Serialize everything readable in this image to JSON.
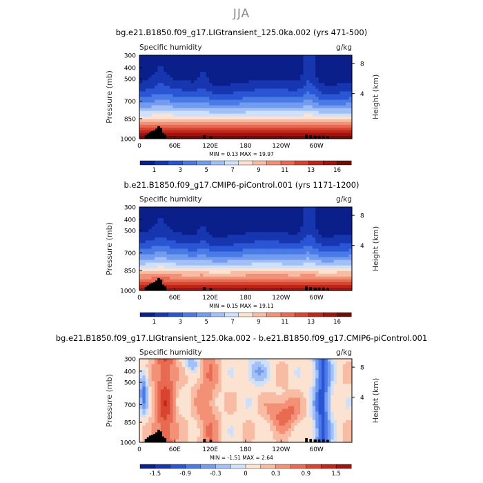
{
  "figure": {
    "main_title": "JJA"
  },
  "chart_data": [
    {
      "type": "heatmap",
      "title": "bg.e21.B1850.f09_g17.LIGtransient_125.0ka.002 (yrs 471-500)",
      "variable": "Specific humidity",
      "units": "g/kg",
      "ylabel": "Pressure (mb)",
      "ylabel_right": "Height (km)",
      "x_ticks": [
        "0",
        "60E",
        "120E",
        "180",
        "120W",
        "60W"
      ],
      "y_ticks": [
        "300",
        "400",
        "500",
        "700",
        "850",
        "1000"
      ],
      "y_ticks_right": [
        "8",
        "4"
      ],
      "stats": "MIN =     0.13   MAX =    19.97",
      "colorbar_labels": [
        "1",
        "3",
        "5",
        "7",
        "9",
        "11",
        "13",
        "16"
      ],
      "colorbar_colors": [
        "#0b1f8a",
        "#1736b0",
        "#2a55d4",
        "#4a7ae6",
        "#739cf0",
        "#a2c0f6",
        "#cfe0fb",
        "#fce2d1",
        "#f8bca4",
        "#f39177",
        "#e86a52",
        "#d8442f",
        "#bf2519",
        "#9d1410",
        "#6e0d08"
      ],
      "ylim_mb": [
        1000,
        300
      ],
      "xlim_deg": [
        0,
        360
      ],
      "land_mask": true
    },
    {
      "type": "heatmap",
      "title": "b.e21.B1850.f09_g17.CMIP6-piControl.001 (yrs 1171-1200)",
      "variable": "Specific humidity",
      "units": "g/kg",
      "ylabel": "Pressure (mb)",
      "ylabel_right": "Height (km)",
      "x_ticks": [
        "0",
        "60E",
        "120E",
        "180",
        "120W",
        "60W"
      ],
      "y_ticks": [
        "300",
        "400",
        "500",
        "700",
        "850",
        "1000"
      ],
      "y_ticks_right": [
        "8",
        "4"
      ],
      "stats": "MIN =     0.15   MAX =    19.11",
      "colorbar_labels": [
        "1",
        "3",
        "5",
        "7",
        "9",
        "11",
        "13",
        "16"
      ],
      "colorbar_colors": [
        "#0b1f8a",
        "#1736b0",
        "#2a55d4",
        "#4a7ae6",
        "#739cf0",
        "#a2c0f6",
        "#cfe0fb",
        "#fce2d1",
        "#f8bca4",
        "#f39177",
        "#e86a52",
        "#d8442f",
        "#bf2519",
        "#9d1410",
        "#6e0d08"
      ],
      "ylim_mb": [
        1000,
        300
      ],
      "xlim_deg": [
        0,
        360
      ],
      "land_mask": true
    },
    {
      "type": "heatmap",
      "title": "bg.e21.B1850.f09_g17.LIGtransient_125.0ka.002 - b.e21.B1850.f09_g17.CMIP6-piControl.001",
      "variable": "Specific humidity",
      "units": "g/kg",
      "ylabel": "Pressure (mb)",
      "ylabel_right": "Height (km)",
      "x_ticks": [
        "0",
        "60E",
        "120E",
        "180",
        "120W",
        "60W"
      ],
      "y_ticks": [
        "300",
        "400",
        "500",
        "700",
        "850",
        "1000"
      ],
      "y_ticks_right": [
        "8",
        "4"
      ],
      "stats": "MIN =    -1.51   MAX =     2.64",
      "colorbar_labels": [
        "-1.5",
        "-0.9",
        "-0.3",
        "0",
        "0.3",
        "0.9",
        "1.5"
      ],
      "colorbar_colors": [
        "#0b1f8a",
        "#1736b0",
        "#2a55d4",
        "#4a7ae6",
        "#739cf0",
        "#a2c0f6",
        "#cfe0fb",
        "#fce2d1",
        "#f8bca4",
        "#f39177",
        "#e86a52",
        "#d8442f",
        "#bf2519",
        "#9d1410"
      ],
      "ylim_mb": [
        1000,
        300
      ],
      "xlim_deg": [
        0,
        360
      ],
      "land_mask": true
    }
  ]
}
